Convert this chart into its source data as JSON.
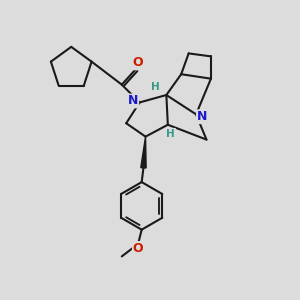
{
  "bg": "#dcdcdc",
  "bc": "#1a1a1a",
  "Nc": "#1a1acc",
  "Oc": "#cc1a00",
  "Hc": "#3a9a8a",
  "bw": 1.5,
  "figsize": [
    3.0,
    3.0
  ],
  "dpi": 100,
  "xlim": [
    0,
    10
  ],
  "ylim": [
    0,
    10
  ]
}
